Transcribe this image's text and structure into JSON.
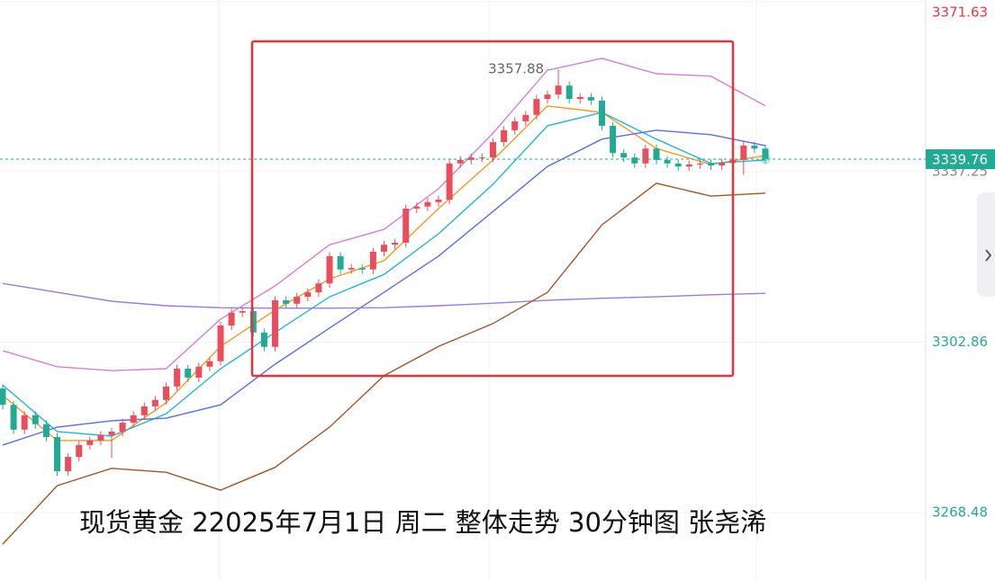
{
  "chart_data": {
    "type": "candlestick",
    "title": "现货黄金 22025年7月1日 周二 整体走势 30分钟图 张尧浠",
    "open": [
      3293.5,
      3290.2,
      3285.2,
      3288.1,
      3286.3,
      3283.7,
      3276.8,
      3279.7,
      3282.1,
      3283.0,
      3284.1,
      3284.8,
      3286.6,
      3288.1,
      3289.9,
      3291.2,
      3293.9,
      3297.5,
      3295.7,
      3297.9,
      3299.0,
      3306.2,
      3308.8,
      3309.1,
      3304.8,
      3301.9,
      3311.3,
      3310.6,
      3312.0,
      3312.9,
      3314.7,
      3320.2,
      3317.5,
      3317.8,
      3317.5,
      3321.1,
      3322.5,
      3322.9,
      3329.8,
      3330.2,
      3331.1,
      3331.6,
      3338.9,
      3339.6,
      3340.1,
      3340.1,
      3343.2,
      3345.6,
      3347.4,
      3348.7,
      3351.9,
      3352.8,
      3354.6,
      3351.9,
      3352.3,
      3351.6,
      3346.5,
      3341.0,
      3340.1,
      3338.9,
      3341.9,
      3339.6,
      3338.9,
      3338.3,
      3338.7,
      3338.9,
      3338.5,
      3339.0,
      3339.6,
      3342.5,
      3341.9
    ],
    "high": [
      3294.3,
      3291.0,
      3288.9,
      3288.9,
      3287.1,
      3284.5,
      3280.5,
      3282.9,
      3283.8,
      3284.9,
      3285.6,
      3287.4,
      3288.9,
      3290.7,
      3292.0,
      3294.7,
      3298.3,
      3298.3,
      3298.7,
      3299.8,
      3307.0,
      3309.6,
      3309.9,
      3309.9,
      3305.6,
      3312.1,
      3312.1,
      3312.8,
      3313.7,
      3315.5,
      3321.0,
      3321.0,
      3318.6,
      3318.6,
      3321.9,
      3323.3,
      3323.7,
      3330.6,
      3331.0,
      3331.9,
      3332.4,
      3339.7,
      3340.4,
      3340.9,
      3340.9,
      3344.0,
      3346.4,
      3348.2,
      3349.5,
      3352.7,
      3353.6,
      3357.88,
      3355.4,
      3353.1,
      3353.1,
      3352.4,
      3347.3,
      3341.8,
      3340.9,
      3342.7,
      3342.7,
      3340.4,
      3339.7,
      3339.5,
      3339.7,
      3339.7,
      3339.8,
      3340.4,
      3343.3,
      3343.3,
      3342.7
    ],
    "low": [
      3289.3,
      3284.3,
      3284.3,
      3285.4,
      3282.8,
      3275.9,
      3275.9,
      3278.8,
      3281.2,
      3282.1,
      3279.5,
      3283.9,
      3285.7,
      3287.2,
      3289.0,
      3290.3,
      3293.0,
      3294.8,
      3294.8,
      3297.0,
      3298.1,
      3305.3,
      3307.9,
      3303.9,
      3301.0,
      3301.0,
      3309.7,
      3309.7,
      3311.1,
      3312.0,
      3313.8,
      3316.6,
      3316.6,
      3316.6,
      3316.6,
      3320.2,
      3321.6,
      3322.0,
      3328.9,
      3329.3,
      3330.2,
      3330.7,
      3338.0,
      3338.7,
      3339.2,
      3339.2,
      3342.3,
      3344.7,
      3346.5,
      3347.8,
      3351.0,
      3351.9,
      3351.0,
      3351.0,
      3350.7,
      3345.6,
      3340.1,
      3339.2,
      3338.0,
      3338.0,
      3338.7,
      3338.0,
      3337.4,
      3337.4,
      3337.8,
      3337.6,
      3337.6,
      3338.1,
      3336.6,
      3341.0,
      3338.9
    ],
    "close": [
      3290.2,
      3285.2,
      3288.1,
      3286.3,
      3283.7,
      3276.8,
      3279.7,
      3282.1,
      3283.0,
      3284.1,
      3284.8,
      3286.6,
      3288.1,
      3289.9,
      3291.2,
      3293.9,
      3297.5,
      3295.7,
      3297.9,
      3299.0,
      3306.2,
      3308.8,
      3309.1,
      3304.8,
      3301.9,
      3311.3,
      3310.6,
      3312.0,
      3312.9,
      3314.7,
      3320.2,
      3317.5,
      3317.8,
      3317.5,
      3321.1,
      3322.5,
      3322.9,
      3329.8,
      3330.2,
      3331.1,
      3331.6,
      3338.9,
      3339.6,
      3340.1,
      3340.1,
      3343.2,
      3345.6,
      3347.4,
      3348.7,
      3351.9,
      3352.8,
      3354.6,
      3351.9,
      3352.3,
      3351.6,
      3346.5,
      3341.0,
      3340.1,
      3338.9,
      3341.9,
      3339.6,
      3338.9,
      3338.3,
      3338.7,
      3338.9,
      3338.5,
      3339.0,
      3339.6,
      3342.5,
      3341.9,
      3339.8
    ],
    "up_color": "#eb4d5c",
    "down_color": "#22ab94",
    "line_x": [
      0,
      5,
      10,
      15,
      20,
      25,
      30,
      35,
      40,
      45,
      50,
      55,
      60,
      65,
      70
    ],
    "lines": [
      {
        "color": "#f59a23",
        "values": [
          3292.1,
          3283.0,
          3283.0,
          3290.6,
          3302.0,
          3309.3,
          3315.6,
          3319.3,
          3329.8,
          3339.6,
          3350.5,
          3349.2,
          3341.9,
          3338.7,
          3340.5
        ]
      },
      {
        "color": "#22b8cf",
        "values": [
          3294.2,
          3284.8,
          3283.9,
          3288.4,
          3297.5,
          3304.8,
          3312.0,
          3316.5,
          3324.7,
          3334.7,
          3346.5,
          3349.2,
          3343.8,
          3338.9,
          3339.6
        ]
      },
      {
        "color": "#5b6ee1",
        "values": [
          3282.1,
          3285.7,
          3287.0,
          3287.5,
          3290.2,
          3298.4,
          3305.7,
          3312.9,
          3320.2,
          3329.2,
          3338.3,
          3343.8,
          3345.6,
          3344.7,
          3342.5
        ]
      },
      {
        "color": "#9b7be0",
        "values": [
          3314.7,
          3312.9,
          3311.1,
          3310.2,
          3309.8,
          3309.7,
          3309.7,
          3309.8,
          3310.2,
          3310.7,
          3311.3,
          3311.7,
          3312.0,
          3312.4,
          3312.7
        ]
      },
      {
        "color": "#d77fd6",
        "values": [
          3301.1,
          3297.9,
          3297.1,
          3297.5,
          3307.5,
          3314.2,
          3322.5,
          3325.6,
          3333.8,
          3345.0,
          3357.7,
          3360.1,
          3357.0,
          3356.5,
          3350.5
        ]
      },
      {
        "color": "#a0582a",
        "values": [
          3262.1,
          3273.9,
          3277.4,
          3276.6,
          3273.0,
          3277.6,
          3285.7,
          3296.1,
          3302.0,
          3306.6,
          3312.9,
          3326.5,
          3334.9,
          3332.3,
          3332.9
        ]
      }
    ],
    "last_price": 3339.76,
    "ylim": [
      3254.87,
      3371.87
    ],
    "yticks": [
      3268.48,
      3302.86,
      3337.25,
      3371.63
    ],
    "ytick_colors": [
      "#22ab94",
      "#22ab94",
      "#888888",
      "#f23645"
    ],
    "grid": true
  }
}
